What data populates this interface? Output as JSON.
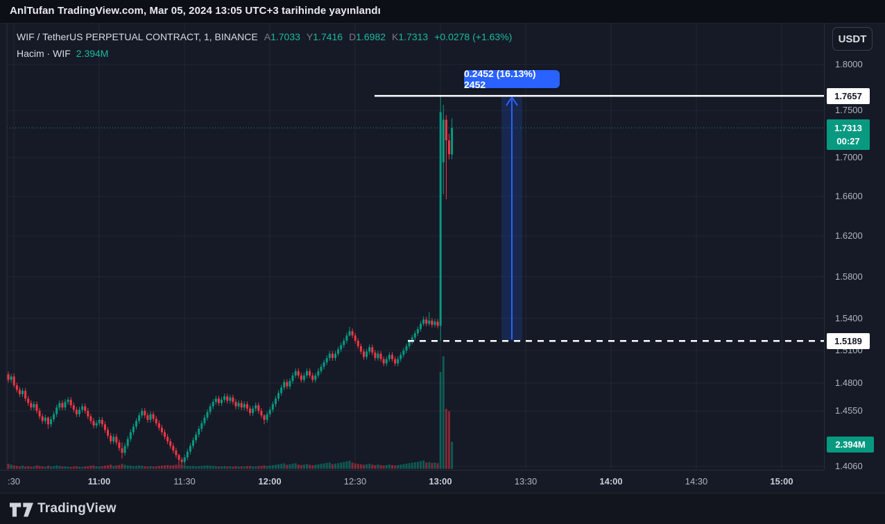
{
  "attribution": {
    "text": "AnlTufan TradingView.com, Mar 05, 2024 13:05 UTC+3 tarihinde yayınlandı"
  },
  "header": {
    "symbol_title": "WIF / TetherUS PERPETUAL CONTRACT, 1, BINANCE",
    "ohlc": {
      "open_label": "A",
      "open": "1.7033",
      "high_label": "Y",
      "high": "1.7416",
      "low_label": "D",
      "low": "1.6982",
      "close_label": "K",
      "close": "1.7313",
      "change": "+0.0278 (+1.63%)"
    },
    "volume_row": {
      "label": "Hacim · WIF",
      "value": "2.394M"
    },
    "currency_button": "USDT"
  },
  "measure_tool": {
    "label": "0.2452 (16.13%) 2452",
    "from_price": 1.5189,
    "to_price": 1.7657,
    "change_abs": 0.2452,
    "change_pct": 16.13
  },
  "price_axis": {
    "ticks": [
      "1.8000",
      "1.7500",
      "1.7000",
      "1.6600",
      "1.6200",
      "1.5800",
      "1.5400",
      "1.5100",
      "1.4800",
      "1.4550",
      "1.4060"
    ],
    "tick_values": [
      1.8,
      1.75,
      1.7,
      1.66,
      1.62,
      1.58,
      1.54,
      1.51,
      1.48,
      1.455,
      1.406
    ],
    "high_line_label": "1.7657",
    "last_price_label": "1.7313",
    "countdown": "00:27",
    "low_line_label": "1.5189",
    "volume_label": "2.394M"
  },
  "time_axis": {
    "ticks": [
      {
        "label": ":30",
        "minute": 0,
        "bold": false
      },
      {
        "label": "11:00",
        "minute": 30,
        "bold": true
      },
      {
        "label": "11:30",
        "minute": 60,
        "bold": false
      },
      {
        "label": "12:00",
        "minute": 90,
        "bold": true
      },
      {
        "label": "12:30",
        "minute": 120,
        "bold": false
      },
      {
        "label": "13:00",
        "minute": 150,
        "bold": true
      },
      {
        "label": "13:30",
        "minute": 180,
        "bold": false
      },
      {
        "label": "14:00",
        "minute": 210,
        "bold": true
      },
      {
        "label": "14:30",
        "minute": 240,
        "bold": false
      },
      {
        "label": "15:00",
        "minute": 270,
        "bold": true
      }
    ]
  },
  "colors": {
    "up": "#089981",
    "down": "#f23645",
    "vol_up": "rgba(8,153,129,0.5)",
    "vol_down": "rgba(242,54,69,0.5)",
    "measure_blue": "#2962ff",
    "measure_fill": "rgba(41,98,255,0.18)",
    "grid": "rgba(255,255,255,0.055)",
    "axis_text": "#b2b5be",
    "border": "#2a2e39"
  },
  "chart_data": {
    "type": "candlestick",
    "title": "WIF / TetherUS PERPETUAL CONTRACT, 1, BINANCE",
    "interval_minutes": 1,
    "scale": "log",
    "ylim": [
      1.399,
      1.816
    ],
    "first_candle_time": "10:28",
    "last_candle_time": "13:04",
    "last_price": 1.7313,
    "session_high": 1.7657,
    "breakout_base": 1.5189,
    "first_open": 1.488,
    "closes": [
      1.483,
      1.486,
      1.478,
      1.474,
      1.47,
      1.473,
      1.466,
      1.462,
      1.458,
      1.461,
      1.455,
      1.45,
      1.446,
      1.449,
      1.443,
      1.4475,
      1.452,
      1.458,
      1.462,
      1.458,
      1.463,
      1.465,
      1.46,
      1.456,
      1.452,
      1.456,
      1.459,
      1.455,
      1.45,
      1.446,
      1.442,
      1.444,
      1.447,
      1.443,
      1.438,
      1.433,
      1.428,
      1.432,
      1.427,
      1.422,
      1.418,
      1.424,
      1.43,
      1.436,
      1.441,
      1.446,
      1.451,
      1.455,
      1.451,
      1.447,
      1.452,
      1.448,
      1.444,
      1.44,
      1.436,
      1.432,
      1.428,
      1.424,
      1.42,
      1.416,
      1.412,
      1.41,
      1.414,
      1.419,
      1.424,
      1.429,
      1.434,
      1.439,
      1.444,
      1.449,
      1.454,
      1.459,
      1.463,
      1.466,
      1.462,
      1.465,
      1.468,
      1.464,
      1.467,
      1.463,
      1.459,
      1.462,
      1.458,
      1.461,
      1.457,
      1.453,
      1.457,
      1.46,
      1.455,
      1.451,
      1.447,
      1.452,
      1.456,
      1.461,
      1.466,
      1.471,
      1.476,
      1.481,
      1.477,
      1.482,
      1.487,
      1.491,
      1.487,
      1.483,
      1.487,
      1.491,
      1.487,
      1.483,
      1.487,
      1.491,
      1.495,
      1.499,
      1.503,
      1.507,
      1.503,
      1.507,
      1.511,
      1.515,
      1.519,
      1.524,
      1.528,
      1.524,
      1.519,
      1.514,
      1.509,
      1.504,
      1.509,
      1.513,
      1.508,
      1.503,
      1.507,
      1.502,
      1.498,
      1.502,
      1.506,
      1.502,
      1.498,
      1.502,
      1.506,
      1.51,
      1.514,
      1.518,
      1.522,
      1.526,
      1.53,
      1.535,
      1.539,
      1.535,
      1.538,
      1.534,
      1.537,
      1.533
    ],
    "volumes": [
      0.45,
      0.38,
      0.3,
      0.25,
      0.22,
      0.28,
      0.2,
      0.24,
      0.18,
      0.22,
      0.3,
      0.26,
      0.22,
      0.18,
      0.28,
      0.2,
      0.24,
      0.3,
      0.26,
      0.2,
      0.22,
      0.18,
      0.16,
      0.2,
      0.24,
      0.18,
      0.16,
      0.2,
      0.24,
      0.28,
      0.3,
      0.22,
      0.2,
      0.24,
      0.28,
      0.32,
      0.38,
      0.26,
      0.3,
      0.34,
      0.44,
      0.36,
      0.3,
      0.28,
      0.24,
      0.26,
      0.3,
      0.28,
      0.22,
      0.2,
      0.24,
      0.2,
      0.22,
      0.26,
      0.28,
      0.3,
      0.34,
      0.3,
      0.32,
      0.36,
      0.42,
      0.38,
      0.3,
      0.26,
      0.24,
      0.26,
      0.22,
      0.24,
      0.26,
      0.28,
      0.3,
      0.28,
      0.26,
      0.24,
      0.2,
      0.22,
      0.24,
      0.2,
      0.22,
      0.2,
      0.24,
      0.2,
      0.22,
      0.2,
      0.24,
      0.26,
      0.22,
      0.2,
      0.24,
      0.26,
      0.3,
      0.26,
      0.28,
      0.32,
      0.36,
      0.4,
      0.44,
      0.48,
      0.36,
      0.4,
      0.46,
      0.5,
      0.38,
      0.34,
      0.38,
      0.42,
      0.36,
      0.32,
      0.36,
      0.4,
      0.44,
      0.48,
      0.52,
      0.56,
      0.42,
      0.46,
      0.5,
      0.55,
      0.6,
      0.66,
      0.72,
      0.55,
      0.48,
      0.44,
      0.4,
      0.36,
      0.4,
      0.44,
      0.38,
      0.34,
      0.38,
      0.34,
      0.3,
      0.34,
      0.38,
      0.34,
      0.3,
      0.34,
      0.38,
      0.42,
      0.46,
      0.5,
      0.54,
      0.58,
      0.62,
      0.68,
      0.74,
      0.56,
      0.6,
      0.52,
      0.56,
      0.5
    ],
    "extremes": {
      "2": [
        1.489,
        1.476
      ],
      "14": [
        1.45,
        1.439
      ],
      "40": [
        1.427,
        1.413
      ],
      "60": [
        1.417,
        1.4085
      ],
      "61": [
        1.414,
        1.408
      ],
      "90": [
        1.452,
        1.443
      ],
      "120": [
        1.532,
        1.523
      ],
      "146": [
        1.542,
        1.533
      ],
      "148": [
        1.546,
        1.533
      ]
    },
    "last_candles": [
      [
        1.533,
        1.7657,
        1.5189,
        1.748,
        8.55
      ],
      [
        1.695,
        1.756,
        1.662,
        1.74,
        9.95
      ],
      [
        1.74,
        1.745,
        1.657,
        1.718,
        5.3
      ],
      [
        1.718,
        1.725,
        1.698,
        1.7035,
        5.1
      ],
      [
        1.7033,
        1.7416,
        1.6982,
        1.7313,
        2.394
      ]
    ],
    "volume_unit": "M"
  },
  "footer": {
    "brand": "TradingView"
  }
}
